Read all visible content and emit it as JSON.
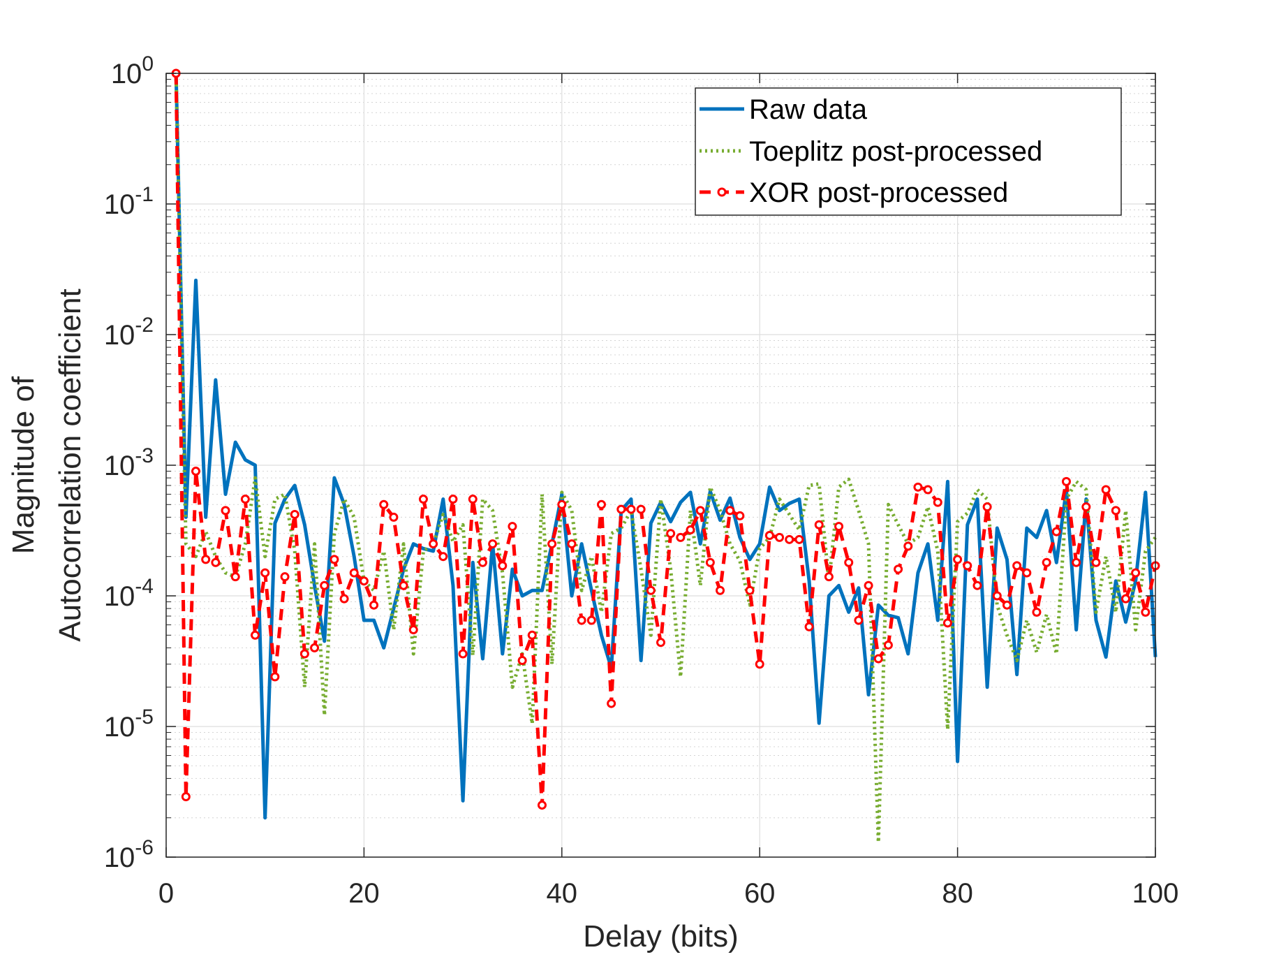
{
  "chart_data": {
    "type": "line",
    "title": "",
    "xlabel": "Delay (bits)",
    "ylabel_lines": [
      "Magnitude of",
      "Autocorrelation coefficient"
    ],
    "xlim": [
      0,
      100
    ],
    "ylim": [
      1e-06,
      1
    ],
    "yscale": "log",
    "xticks": [
      0,
      20,
      40,
      60,
      80,
      100
    ],
    "xtick_labels": [
      "0",
      "20",
      "40",
      "60",
      "80",
      "100"
    ],
    "yticks": [
      {
        "value": 1,
        "base": "10",
        "exp": "0"
      },
      {
        "value": 0.1,
        "base": "10",
        "exp": "-1"
      },
      {
        "value": 0.01,
        "base": "10",
        "exp": "-2"
      },
      {
        "value": 0.001,
        "base": "10",
        "exp": "-3"
      },
      {
        "value": 0.0001,
        "base": "10",
        "exp": "-4"
      },
      {
        "value": 1e-05,
        "base": "10",
        "exp": "-5"
      },
      {
        "value": 1e-06,
        "base": "10",
        "exp": "-6"
      }
    ],
    "grid": true,
    "legend_position": "top-right",
    "x": [
      1,
      2,
      3,
      4,
      5,
      6,
      7,
      8,
      9,
      10,
      11,
      12,
      13,
      14,
      15,
      16,
      17,
      18,
      19,
      20,
      21,
      22,
      23,
      24,
      25,
      26,
      27,
      28,
      29,
      30,
      31,
      32,
      33,
      34,
      35,
      36,
      37,
      38,
      39,
      40,
      41,
      42,
      43,
      44,
      45,
      46,
      47,
      48,
      49,
      50,
      51,
      52,
      53,
      54,
      55,
      56,
      57,
      58,
      59,
      60,
      61,
      62,
      63,
      64,
      65,
      66,
      67,
      68,
      69,
      70,
      71,
      72,
      73,
      74,
      75,
      76,
      77,
      78,
      79,
      80,
      81,
      82,
      83,
      84,
      85,
      86,
      87,
      88,
      89,
      90,
      91,
      92,
      93,
      94,
      95,
      96,
      97,
      98,
      99,
      100
    ],
    "series": [
      {
        "name": "Raw data",
        "color": "#0072BD",
        "style": "solid",
        "values": [
          1,
          0.0004,
          0.026,
          0.0004,
          0.0045,
          0.0006,
          0.0015,
          0.0011,
          0.001,
          2e-06,
          0.00036,
          0.00055,
          0.0007,
          0.00035,
          0.00012,
          4.5e-05,
          0.0008,
          0.0005,
          0.0002,
          6.5e-05,
          6.5e-05,
          4e-05,
          8e-05,
          0.00016,
          0.00025,
          0.00023,
          0.00022,
          0.00055,
          0.00012,
          2.7e-06,
          0.00018,
          3.3e-05,
          0.00025,
          3.6e-05,
          0.00016,
          0.0001,
          0.00011,
          0.00011,
          0.00025,
          0.0006,
          0.0001,
          0.00025,
          0.00011,
          5e-05,
          2.8e-05,
          0.00045,
          0.00055,
          3.2e-05,
          0.00036,
          0.00052,
          0.00037,
          0.00052,
          0.00062,
          0.00025,
          0.00063,
          0.00038,
          0.00056,
          0.00028,
          0.00019,
          0.00025,
          0.00068,
          0.00045,
          0.00051,
          0.00055,
          0.00013,
          1.06e-05,
          0.0001,
          0.00012,
          7.5e-05,
          0.000115,
          1.75e-05,
          8.5e-05,
          7.1e-05,
          6.8e-05,
          3.6e-05,
          0.00015,
          0.00025,
          6.5e-05,
          0.00075,
          5.4e-06,
          0.00035,
          0.00055,
          2e-05,
          0.00033,
          0.00019,
          2.5e-05,
          0.00033,
          0.00028,
          0.00045,
          0.00018,
          0.00065,
          5.5e-05,
          0.00055,
          6.5e-05,
          3.4e-05,
          0.00013,
          6.3e-05,
          0.00013,
          0.00062,
          3.4e-05
        ]
      },
      {
        "name": "Toeplitz post-processed",
        "color": "#77AC30",
        "style": "dotted",
        "values": [
          1,
          0.00025,
          0.0002,
          0.00031,
          0.0002,
          0.00015,
          0.00014,
          0.00025,
          0.0008,
          0.0002,
          0.00055,
          0.0006,
          0.00022,
          2e-05,
          0.00025,
          1.22e-05,
          0.0003,
          0.00055,
          0.0004,
          0.00013,
          0.00011,
          0.00022,
          5.5e-05,
          0.00025,
          3.6e-05,
          0.00022,
          0.00025,
          0.00042,
          0.00026,
          0.00035,
          3.5e-05,
          0.00055,
          0.00045,
          0.00015,
          2e-05,
          3.6e-05,
          1.05e-05,
          0.0006,
          3e-05,
          0.00062,
          0.00045,
          0.00011,
          0.0002,
          7.5e-05,
          0.0003,
          0.00033,
          0.00045,
          0.00016,
          5e-05,
          0.00055,
          0.00016,
          2.4e-05,
          0.00045,
          0.00012,
          0.00068,
          0.00045,
          0.00025,
          0.000185,
          8.5e-05,
          0.00023,
          0.00028,
          0.00055,
          0.00042,
          0.00032,
          0.0007,
          0.00072,
          0.00013,
          0.00068,
          0.00078,
          0.00045,
          0.00025,
          1.3e-06,
          0.0005,
          0.00035,
          0.00025,
          0.00028,
          0.00048,
          0.00022,
          9.5e-06,
          0.00037,
          0.00043,
          0.00065,
          0.00055,
          8.5e-05,
          5e-05,
          3.2e-05,
          6.5e-05,
          3.7e-05,
          7.2e-05,
          3.6e-05,
          0.00055,
          0.00075,
          0.00065,
          7.5e-05,
          0.0002,
          7.5e-05,
          0.00045,
          5.5e-05,
          0.00022,
          0.00028
        ]
      },
      {
        "name": "XOR post-processed",
        "color": "#FF0000",
        "style": "dashed-marker",
        "values": [
          1,
          2.9e-06,
          0.0009,
          0.00019,
          0.00018,
          0.00045,
          0.00014,
          0.00055,
          5e-05,
          0.00015,
          2.4e-05,
          0.00014,
          0.00042,
          3.6e-05,
          4e-05,
          0.00012,
          0.00019,
          9.5e-05,
          0.00015,
          0.00013,
          8.5e-05,
          0.0005,
          0.0004,
          0.00012,
          5.5e-05,
          0.00055,
          0.00025,
          0.0002,
          0.00055,
          3.6e-05,
          0.00055,
          0.00018,
          0.00025,
          0.00017,
          0.00034,
          3.2e-05,
          5e-05,
          2.5e-06,
          0.00025,
          0.0005,
          0.00025,
          6.5e-05,
          6.5e-05,
          0.0005,
          1.5e-05,
          0.00046,
          0.00046,
          0.00046,
          0.00011,
          4.4e-05,
          0.0003,
          0.00028,
          0.00032,
          0.00045,
          0.00018,
          0.00011,
          0.00045,
          0.00041,
          0.00011,
          3e-05,
          0.00029,
          0.00028,
          0.00027,
          0.00027,
          5.8e-05,
          0.00035,
          0.00014,
          0.00034,
          0.00018,
          6.5e-05,
          0.00012,
          3.3e-05,
          4.2e-05,
          0.00016,
          0.00024,
          0.00068,
          0.00065,
          0.00052,
          6.2e-05,
          0.00019,
          0.00017,
          0.00012,
          0.00048,
          0.0001,
          8.5e-05,
          0.00017,
          0.00015,
          7.5e-05,
          0.00018,
          0.00031,
          0.00075,
          0.00018,
          0.00048,
          0.00018,
          0.00065,
          0.00045,
          9.5e-05,
          0.00015,
          7.5e-05,
          0.00017
        ]
      }
    ]
  }
}
